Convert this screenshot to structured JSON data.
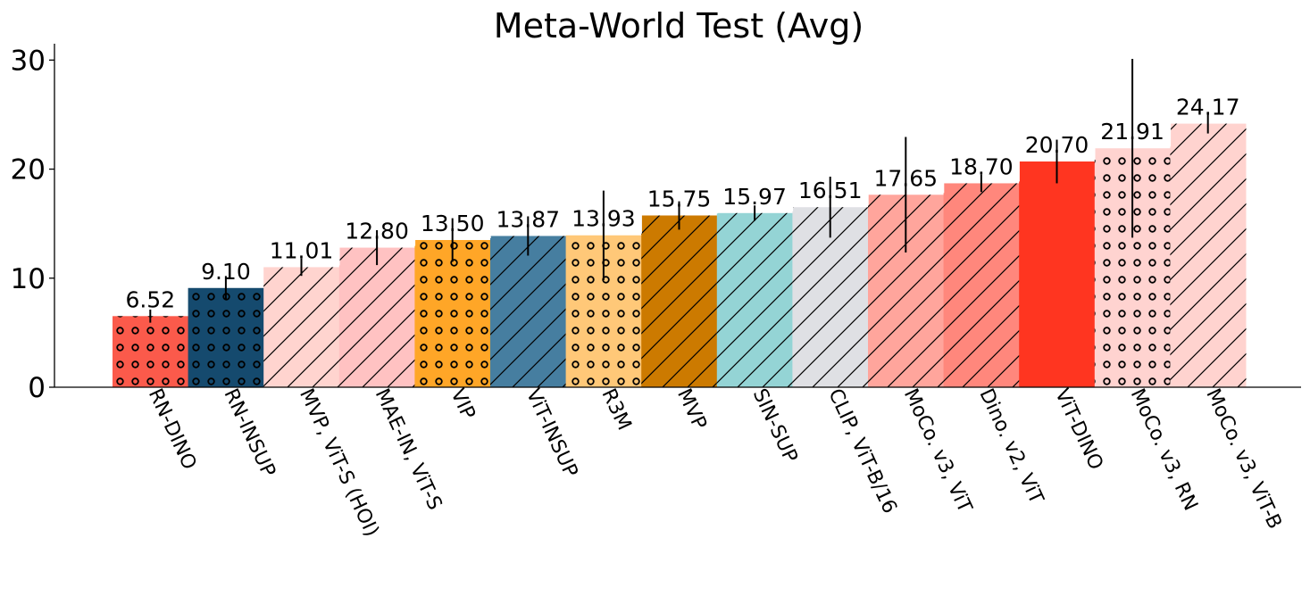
{
  "chart_data": {
    "type": "bar",
    "title": "Meta-World Test (Avg)",
    "xlabel": "",
    "ylabel": "",
    "ylim": [
      0,
      31.5
    ],
    "yticks": [
      "0",
      "10",
      "20",
      "30"
    ],
    "grid": false,
    "legend": "none",
    "categories": [
      "RN-DINO",
      "RN-INSUP",
      "MVP, ViT-S (HOI)",
      "MAE-IN, ViT-S",
      "VIP",
      "ViT-INSUP",
      "R3M",
      "MVP",
      "SIN-SUP",
      "CLIP, ViT-B/16",
      "MoCo. v3, ViT",
      "Dino. v2, ViT",
      "ViT-DINO",
      "MoCo. v3, RN",
      "MoCo. v3, ViT-B"
    ],
    "values": [
      6.52,
      9.1,
      11.01,
      12.8,
      13.5,
      13.87,
      13.93,
      15.75,
      15.97,
      16.51,
      17.65,
      18.7,
      20.7,
      21.91,
      24.17
    ],
    "value_labels": [
      "6.52",
      "9.10",
      "11.01",
      "12.80",
      "13.50",
      "13.87",
      "13.93",
      "15.75",
      "15.97",
      "16.51",
      "17.65",
      "18.70",
      "20.70",
      "21.91",
      "24.17"
    ],
    "error": [
      0.6,
      1.1,
      0.8,
      1.6,
      2.0,
      1.8,
      4.1,
      1.3,
      0.7,
      2.8,
      5.3,
      0.8,
      2.0,
      8.2,
      0.9
    ],
    "colors": [
      "#fb5a4b",
      "#154a6e",
      "#ffd4cf",
      "#ffc2c2",
      "#ffa627",
      "#467ea0",
      "#ffc878",
      "#cc7a00",
      "#94d4d5",
      "#dfe0e4",
      "#ffa59c",
      "#ff877c",
      "#ff3520",
      "#ffd3d0",
      "#ffd3cf"
    ],
    "hatches": [
      "circle",
      "circle",
      "diag",
      "diag",
      "circle",
      "diag",
      "circle",
      "diag",
      "diag",
      "diag",
      "diag",
      "diag",
      "none",
      "circle",
      "diag"
    ]
  }
}
